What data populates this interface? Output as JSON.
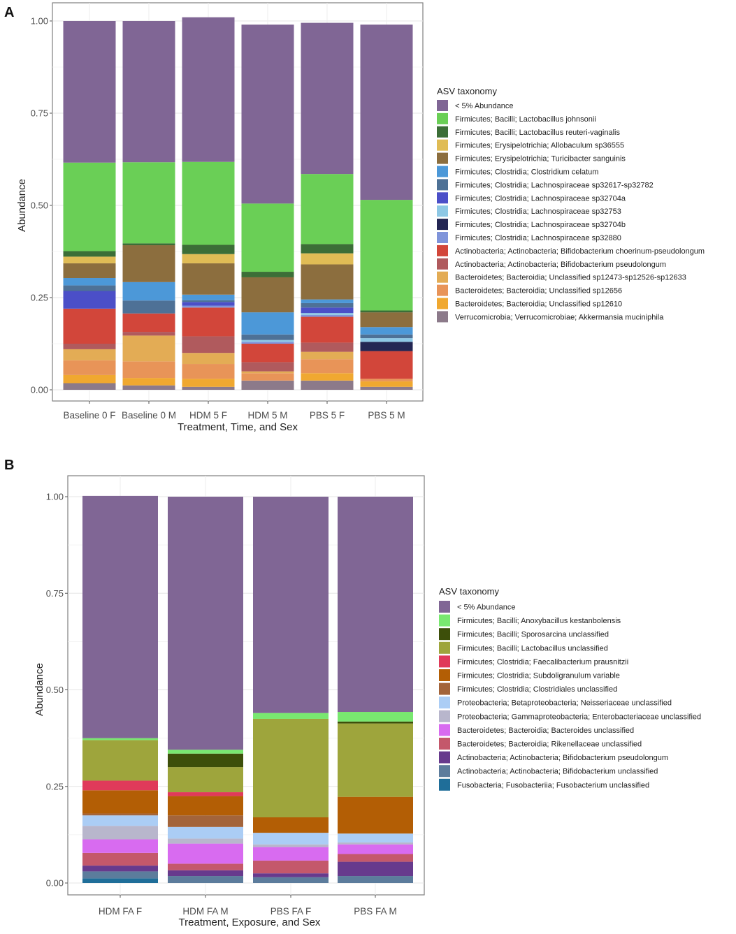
{
  "chart_data": [
    {
      "panel": "A",
      "type": "bar",
      "stacked": true,
      "xlabel": "Treatment, Time, and Sex",
      "ylabel": "Abundance",
      "ylim": [
        0,
        1
      ],
      "yticks": [
        "0.00",
        "0.25",
        "0.50",
        "0.75",
        "1.00"
      ],
      "categories": [
        "Baseline 0 F",
        "Baseline 0 M",
        "HDM 5 F",
        "HDM 5 M",
        "PBS 5 F",
        "PBS 5 M"
      ],
      "legend_title": "ASV taxonomy",
      "series": [
        {
          "name": "Verrucomicrobia; Verrucomicrobiae; Akkermansia muciniphila",
          "color": "#8c7a8a",
          "values": [
            0.018,
            0.012,
            0.008,
            0.025,
            0.025,
            0.008
          ]
        },
        {
          "name": "Bacteroidetes; Bacteroidia; Unclassified sp12610",
          "color": "#f0a830",
          "values": [
            0.022,
            0.02,
            0.022,
            0.0,
            0.02,
            0.015
          ]
        },
        {
          "name": "Bacteroidetes; Bacteroidia; Unclassified sp12656",
          "color": "#e89458",
          "values": [
            0.04,
            0.045,
            0.04,
            0.02,
            0.038,
            0.007
          ]
        },
        {
          "name": "Bacteroidetes; Bacteroidia; Unclassified sp12473-sp12526-sp12633",
          "color": "#e3ac55",
          "values": [
            0.03,
            0.07,
            0.03,
            0.005,
            0.02,
            0.0
          ]
        },
        {
          "name": "Actinobacteria; Actinobacteria; Bifidobacterium pseudolongum",
          "color": "#b05a5d",
          "values": [
            0.015,
            0.01,
            0.045,
            0.025,
            0.025,
            0.0
          ]
        },
        {
          "name": "Actinobacteria; Actinobacteria; Bifidobacterium choerinum-pseudolongum",
          "color": "#d2463a",
          "values": [
            0.095,
            0.05,
            0.078,
            0.05,
            0.07,
            0.075
          ]
        },
        {
          "name": "Firmicutes; Clostridia; Lachnospiraceae sp32880",
          "color": "#7f94da",
          "values": [
            0.0,
            0.0,
            0.005,
            0.005,
            0.005,
            0.0
          ]
        },
        {
          "name": "Firmicutes; Clostridia; Lachnospiraceae sp32704b",
          "color": "#232653",
          "values": [
            0.0,
            0.0,
            0.0,
            0.0,
            0.0,
            0.025
          ]
        },
        {
          "name": "Firmicutes; Clostridia; Lachnospiraceae sp32753",
          "color": "#8ec8e5",
          "values": [
            0.0,
            0.0,
            0.0,
            0.005,
            0.005,
            0.01
          ]
        },
        {
          "name": "Firmicutes; Clostridia; Lachnospiraceae sp32704a",
          "color": "#4b4fc8",
          "values": [
            0.048,
            0.0,
            0.01,
            0.0,
            0.015,
            0.0
          ]
        },
        {
          "name": "Firmicutes; Clostridia; Lachnospiraceae sp32617-sp32782",
          "color": "#4e7196",
          "values": [
            0.015,
            0.035,
            0.005,
            0.015,
            0.012,
            0.01
          ]
        },
        {
          "name": "Firmicutes; Clostridia; Clostridium celatum",
          "color": "#4c98d8",
          "values": [
            0.02,
            0.05,
            0.015,
            0.06,
            0.01,
            0.02
          ]
        },
        {
          "name": "Firmicutes; Erysipelotrichia; Turicibacter sanguinis",
          "color": "#8c6e3e",
          "values": [
            0.04,
            0.1,
            0.085,
            0.095,
            0.095,
            0.04
          ]
        },
        {
          "name": "Firmicutes; Erysipelotrichia; Allobaculum sp36555",
          "color": "#e0bc55",
          "values": [
            0.018,
            0.0,
            0.025,
            0.0,
            0.03,
            0.0
          ]
        },
        {
          "name": "Firmicutes; Bacilli; Lactobacillus reuteri-vaginalis",
          "color": "#3c6e37",
          "values": [
            0.015,
            0.005,
            0.025,
            0.015,
            0.025,
            0.005
          ]
        },
        {
          "name": "Firmicutes; Bacilli; Lactobacillus johnsonii",
          "color": "#6acf56",
          "values": [
            0.24,
            0.22,
            0.225,
            0.185,
            0.19,
            0.3
          ]
        },
        {
          "name": "< 5% Abundance",
          "color": "#806695",
          "values": [
            0.384,
            0.383,
            0.392,
            0.485,
            0.41,
            0.475
          ]
        }
      ],
      "legend_order": [
        "< 5% Abundance",
        "Firmicutes; Bacilli; Lactobacillus johnsonii",
        "Firmicutes; Bacilli; Lactobacillus reuteri-vaginalis",
        "Firmicutes; Erysipelotrichia; Allobaculum sp36555",
        "Firmicutes; Erysipelotrichia; Turicibacter sanguinis",
        "Firmicutes; Clostridia; Clostridium celatum",
        "Firmicutes; Clostridia; Lachnospiraceae sp32617-sp32782",
        "Firmicutes; Clostridia; Lachnospiraceae sp32704a",
        "Firmicutes; Clostridia; Lachnospiraceae sp32753",
        "Firmicutes; Clostridia; Lachnospiraceae sp32704b",
        "Firmicutes; Clostridia; Lachnospiraceae sp32880",
        "Actinobacteria; Actinobacteria; Bifidobacterium choerinum-pseudolongum",
        "Actinobacteria; Actinobacteria; Bifidobacterium pseudolongum",
        "Bacteroidetes; Bacteroidia; Unclassified sp12473-sp12526-sp12633",
        "Bacteroidetes; Bacteroidia; Unclassified sp12656",
        "Bacteroidetes; Bacteroidia; Unclassified sp12610",
        "Verrucomicrobia; Verrucomicrobiae; Akkermansia muciniphila"
      ]
    },
    {
      "panel": "B",
      "type": "bar",
      "stacked": true,
      "xlabel": "Treatment, Exposure, and Sex",
      "ylabel": "Abundance",
      "ylim": [
        0,
        1
      ],
      "yticks": [
        "0.00",
        "0.25",
        "0.50",
        "0.75",
        "1.00"
      ],
      "categories": [
        "HDM FA F",
        "HDM FA M",
        "PBS FA F",
        "PBS FA M"
      ],
      "legend_title": "ASV taxonomy",
      "series": [
        {
          "name": "Fusobacteria; Fusobacteriia; Fusobacterium unclassified",
          "color": "#1f6e99",
          "values": [
            0.012,
            0.0,
            0.0,
            0.0
          ]
        },
        {
          "name": "Actinobacteria; Actinobacteria; Bifidobacterium unclassified",
          "color": "#5c7c9c",
          "values": [
            0.018,
            0.018,
            0.015,
            0.018
          ]
        },
        {
          "name": "Actinobacteria; Actinobacteria; Bifidobacterium pseudolongum",
          "color": "#673a8d",
          "values": [
            0.015,
            0.015,
            0.01,
            0.037
          ]
        },
        {
          "name": "Bacteroidetes; Bacteroidia; Rikenellaceae unclassified",
          "color": "#c4586b",
          "values": [
            0.033,
            0.017,
            0.033,
            0.02
          ]
        },
        {
          "name": "Bacteroidetes; Bacteroidia; Bacteroides unclassified",
          "color": "#d86bf0",
          "values": [
            0.035,
            0.052,
            0.035,
            0.025
          ]
        },
        {
          "name": "Proteobacteria; Gammaproteobacteria; Enterobacteriaceae unclassified",
          "color": "#b8b6cc",
          "values": [
            0.035,
            0.013,
            0.007,
            0.005
          ]
        },
        {
          "name": "Proteobacteria; Betaproteobacteria; Neisseriaceae unclassified",
          "color": "#abcdf5",
          "values": [
            0.027,
            0.03,
            0.03,
            0.023
          ]
        },
        {
          "name": "Firmicutes; Clostridia; Clostridiales unclassified",
          "color": "#a3643a",
          "values": [
            0.005,
            0.03,
            0.0,
            0.0
          ]
        },
        {
          "name": "Firmicutes; Clostridia; Subdoligranulum variable",
          "color": "#b35e05",
          "values": [
            0.06,
            0.05,
            0.04,
            0.095
          ]
        },
        {
          "name": "Firmicutes; Clostridia; Faecalibacterium prausnitzii",
          "color": "#e03a5a",
          "values": [
            0.025,
            0.01,
            0.0,
            0.0
          ]
        },
        {
          "name": "Firmicutes; Bacilli; Lactobacillus unclassified",
          "color": "#9ea53c",
          "values": [
            0.105,
            0.065,
            0.255,
            0.19
          ]
        },
        {
          "name": "Firmicutes; Bacilli; Sporosarcina unclassified",
          "color": "#3d4f0a",
          "values": [
            0.0,
            0.035,
            0.0,
            0.005
          ]
        },
        {
          "name": "Firmicutes; Bacilli; Anoxybacillus kestanbolensis",
          "color": "#79e870",
          "values": [
            0.005,
            0.01,
            0.015,
            0.025
          ]
        },
        {
          "name": "< 5% Abundance",
          "color": "#806695",
          "values": [
            0.627,
            0.655,
            0.56,
            0.557
          ]
        }
      ],
      "legend_order": [
        "< 5% Abundance",
        "Firmicutes; Bacilli; Anoxybacillus kestanbolensis",
        "Firmicutes; Bacilli; Sporosarcina unclassified",
        "Firmicutes; Bacilli; Lactobacillus unclassified",
        "Firmicutes; Clostridia; Faecalibacterium prausnitzii",
        "Firmicutes; Clostridia; Subdoligranulum variable",
        "Firmicutes; Clostridia; Clostridiales unclassified",
        "Proteobacteria; Betaproteobacteria; Neisseriaceae unclassified",
        "Proteobacteria; Gammaproteobacteria; Enterobacteriaceae unclassified",
        "Bacteroidetes; Bacteroidia; Bacteroides unclassified",
        "Bacteroidetes; Bacteroidia; Rikenellaceae unclassified",
        "Actinobacteria; Actinobacteria; Bifidobacterium pseudolongum",
        "Actinobacteria; Actinobacteria; Bifidobacterium unclassified",
        "Fusobacteria; Fusobacteriia; Fusobacterium unclassified"
      ]
    }
  ]
}
